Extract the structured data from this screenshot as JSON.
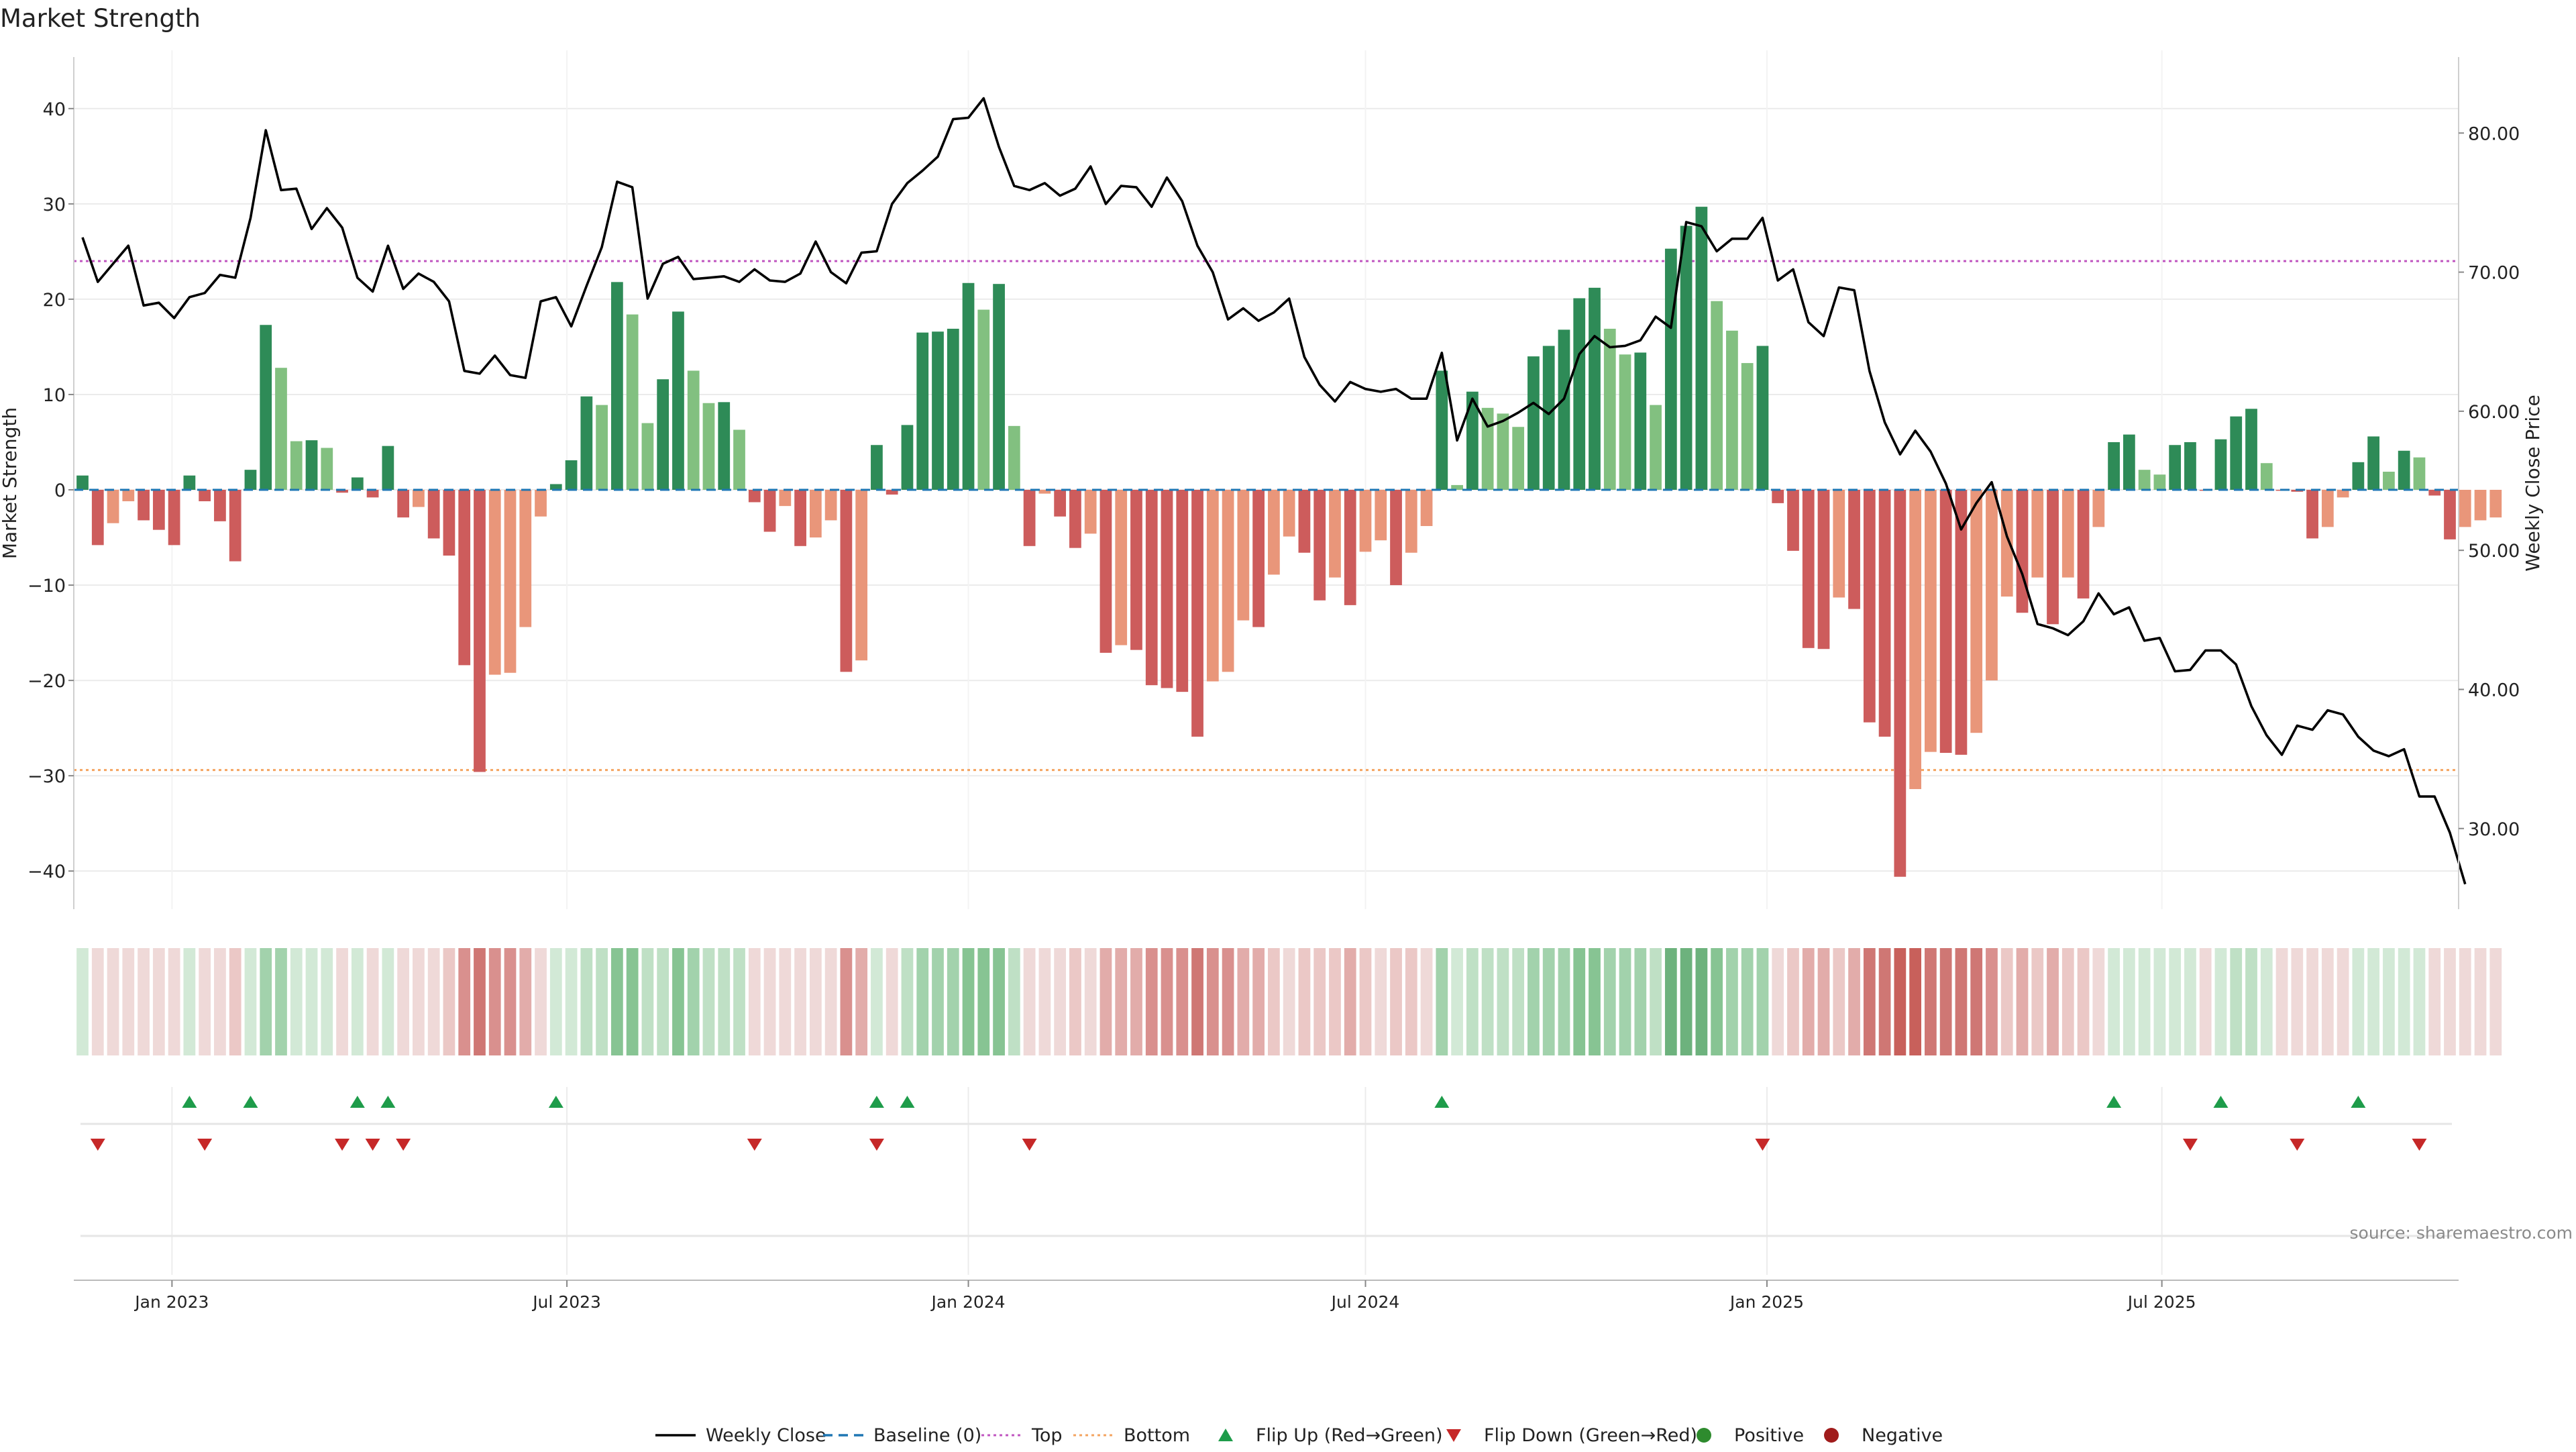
{
  "chart_data": {
    "type": "bar",
    "title": "Market Strength",
    "source_label": "source: sharemaestro.com",
    "left_axis": {
      "label": "Market Strength",
      "ylim": [
        -44,
        44
      ],
      "ticks": [
        40,
        30,
        20,
        10,
        0,
        -10,
        -20,
        -30,
        -40
      ],
      "tick_labels": [
        "40",
        "30",
        "20",
        "10",
        "0",
        "−10",
        "−20",
        "−30",
        "−40"
      ]
    },
    "right_axis": {
      "label": "Weekly Close Price",
      "ylim": [
        24.2,
        84.5
      ],
      "ticks": [
        80,
        70,
        60,
        50,
        40,
        30
      ],
      "tick_labels": [
        "80.00",
        "70.00",
        "60.00",
        "50.00",
        "40.00",
        "30.00"
      ]
    },
    "x_axis": {
      "type": "date",
      "start_date": "2022-11-21",
      "end_date": "2025-11-10",
      "interval_days": 7,
      "range": [
        "2022-11-17",
        "2025-11-14"
      ],
      "tick_dates": [
        "2023-01-01",
        "2023-07-01",
        "2024-01-01",
        "2024-07-01",
        "2025-01-01",
        "2025-07-01"
      ],
      "tick_labels": [
        "Jan 2023",
        "Jul 2023",
        "Jan 2024",
        "Jul 2024",
        "Jan 2025",
        "Jul 2025"
      ]
    },
    "reference_lines": {
      "top": 24,
      "bottom": -29.4,
      "baseline": 0
    },
    "strength": [
      1.5,
      -5.8,
      -3.5,
      -1.2,
      -3.2,
      -4.2,
      -5.8,
      1.5,
      -1.2,
      -3.3,
      -7.5,
      2.1,
      17.3,
      12.8,
      5.1,
      5.2,
      4.4,
      -0.3,
      1.3,
      -0.8,
      4.6,
      -2.9,
      -1.8,
      -5.1,
      -6.9,
      -18.4,
      -29.6,
      -19.4,
      -19.2,
      -14.4,
      -2.8,
      0.6,
      3.1,
      9.8,
      8.9,
      21.8,
      18.4,
      7.0,
      11.6,
      18.7,
      12.5,
      9.1,
      9.2,
      6.3,
      -1.3,
      -4.4,
      -1.7,
      -5.9,
      -5.0,
      -3.2,
      -19.1,
      -17.9,
      4.7,
      -0.5,
      6.8,
      16.5,
      16.6,
      16.9,
      21.7,
      18.9,
      21.6,
      6.7,
      -5.9,
      -0.4,
      -2.8,
      -6.1,
      -4.6,
      -17.1,
      -16.3,
      -16.8,
      -20.5,
      -20.8,
      -21.2,
      -25.9,
      -20.1,
      -19.1,
      -13.7,
      -14.4,
      -8.9,
      -4.9,
      -6.6,
      -11.6,
      -9.2,
      -12.1,
      -6.5,
      -5.3,
      -10.0,
      -6.6,
      -3.8,
      12.5,
      0.5,
      10.3,
      8.6,
      8.0,
      6.6,
      14.0,
      15.1,
      16.8,
      20.1,
      21.2,
      16.9,
      14.2,
      14.4,
      8.9,
      25.3,
      27.7,
      29.7,
      19.8,
      16.7,
      13.3,
      15.1,
      -1.4,
      -6.4,
      -16.6,
      -16.7,
      -11.3,
      -12.5,
      -24.4,
      -25.9,
      -40.6,
      -31.4,
      -27.5,
      -27.6,
      -27.8,
      -25.5,
      -20.0,
      -11.2,
      -12.9,
      -9.2,
      -14.1,
      -9.2,
      -11.4,
      -3.9,
      5.0,
      5.8,
      2.1,
      1.6,
      4.7,
      5.0,
      -0.1,
      5.3,
      7.7,
      8.5,
      2.8,
      -0.1,
      -0.2,
      -5.1,
      -3.9,
      -0.8,
      2.9,
      5.6,
      1.9,
      4.1,
      3.4,
      -0.6,
      -5.2,
      -3.9,
      -3.2,
      -2.9
    ],
    "weekly_close": [
      72.5,
      69.3,
      70.6,
      71.9,
      67.6,
      67.8,
      66.7,
      68.2,
      68.5,
      69.8,
      69.6,
      73.9,
      80.2,
      75.9,
      76.0,
      73.1,
      74.6,
      73.2,
      69.6,
      68.6,
      71.9,
      68.8,
      69.9,
      69.3,
      67.9,
      62.9,
      62.7,
      64.0,
      62.6,
      62.4,
      67.9,
      68.2,
      66.1,
      69.0,
      71.8,
      76.5,
      76.1,
      68.1,
      70.6,
      71.1,
      69.5,
      69.6,
      69.7,
      69.3,
      70.2,
      69.4,
      69.3,
      69.9,
      72.2,
      70.0,
      69.2,
      71.4,
      71.5,
      74.9,
      76.4,
      77.3,
      78.3,
      81.0,
      81.1,
      82.5,
      79.0,
      76.2,
      75.9,
      76.4,
      75.5,
      76.0,
      77.6,
      74.9,
      76.2,
      76.1,
      74.7,
      76.8,
      75.1,
      71.9,
      70.0,
      66.6,
      67.4,
      66.5,
      67.1,
      68.1,
      63.9,
      61.9,
      60.7,
      62.1,
      61.6,
      61.4,
      61.6,
      60.9,
      60.9,
      64.2,
      57.9,
      60.9,
      58.9,
      59.3,
      59.9,
      60.6,
      59.8,
      60.9,
      64.1,
      65.4,
      64.6,
      64.7,
      65.1,
      66.8,
      66.0,
      73.6,
      73.3,
      71.5,
      72.4,
      72.4,
      73.9,
      69.4,
      70.2,
      66.4,
      65.4,
      68.9,
      68.7,
      62.9,
      59.2,
      56.9,
      58.6,
      57.1,
      54.8,
      51.5,
      53.4,
      54.9,
      51.0,
      48.3,
      44.7,
      44.4,
      43.9,
      44.9,
      46.9,
      45.4,
      45.9,
      43.5,
      43.7,
      41.3,
      41.4,
      42.8,
      42.8,
      41.8,
      38.8,
      36.7,
      35.3,
      37.4,
      37.1,
      38.5,
      38.2,
      36.6,
      35.6,
      35.2,
      35.7,
      32.3,
      32.3,
      29.7,
      26.0
    ],
    "band_style": {
      "positive_colors": [
        "#d2e9d6",
        "#bfe0c5",
        "#a2d2ac",
        "#87c493",
        "#6db27d",
        "#5aa16b"
      ],
      "negative_colors": [
        "#efd9d8",
        "#ebc8c6",
        "#e2acaa",
        "#d9908e",
        "#cf7774",
        "#c8605b"
      ]
    },
    "flips": {
      "up_indices": [
        7,
        11,
        18,
        20,
        31,
        52,
        54,
        89,
        133,
        140,
        149
      ],
      "down_indices": [
        1,
        8,
        17,
        19,
        21,
        44,
        52,
        62,
        110,
        138,
        145,
        153
      ]
    },
    "colors": {
      "strong_positive": "#2e8b57",
      "weak_positive": "#82c080",
      "strong_negative": "#cd5c5c",
      "weak_negative": "#e9967a",
      "price_line": "#000000",
      "baseline": "#1f77b4",
      "top_line": "#c056c0",
      "bottom_line": "#f4a460",
      "flip_up": "#1e9c4a",
      "flip_down": "#c62828",
      "positive_dot": "#2e8b2e",
      "negative_dot": "#a01b1b",
      "grid": "#ebebeb",
      "text": "#222222"
    },
    "legend": [
      {
        "key": "weekly_close",
        "label": "Weekly Close",
        "symbol": "line",
        "color": "#000000"
      },
      {
        "key": "baseline",
        "label": "Baseline (0)",
        "symbol": "dash",
        "color": "#1f77b4"
      },
      {
        "key": "top",
        "label": "Top",
        "symbol": "dot-line",
        "color": "#c056c0"
      },
      {
        "key": "bottom",
        "label": "Bottom",
        "symbol": "dot-line",
        "color": "#f4a460"
      },
      {
        "key": "flip_up",
        "label": "Flip Up (Red→Green)",
        "symbol": "tri-up",
        "color": "#1e9c4a"
      },
      {
        "key": "flip_down",
        "label": "Flip Down (Green→Red)",
        "symbol": "tri-down",
        "color": "#c62828"
      },
      {
        "key": "positive",
        "label": "Positive",
        "symbol": "circle",
        "color": "#2e8b2e"
      },
      {
        "key": "negative",
        "label": "Negative",
        "symbol": "circle",
        "color": "#a01b1b"
      }
    ]
  }
}
